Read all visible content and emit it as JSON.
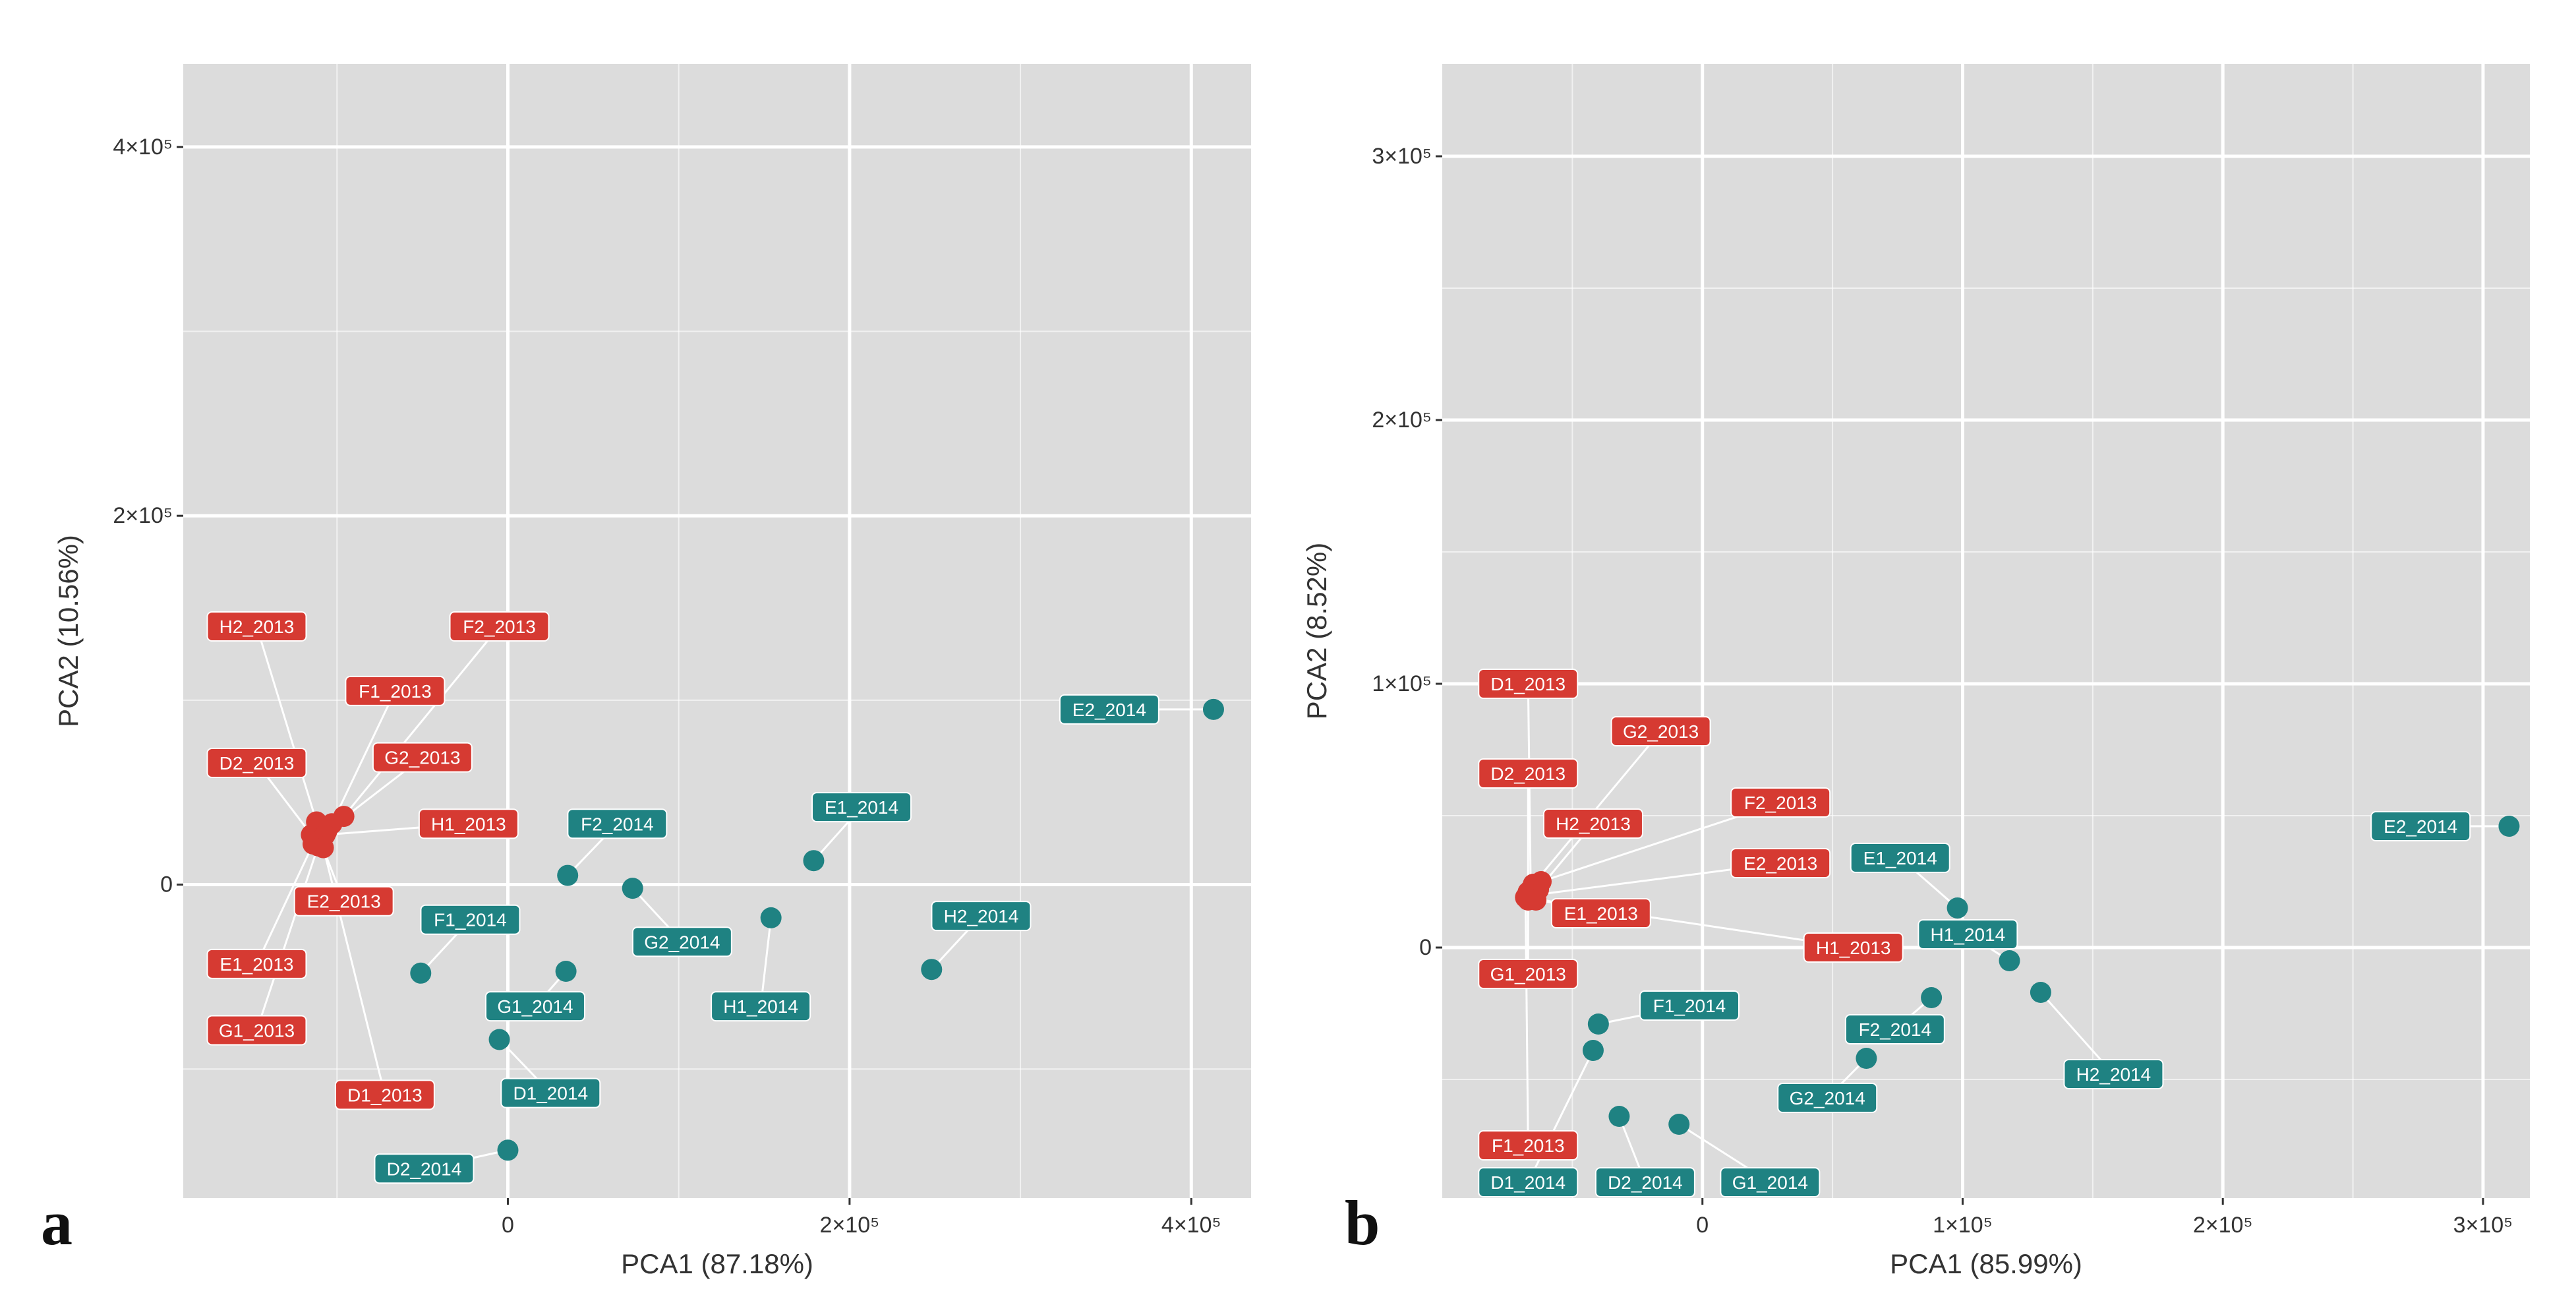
{
  "figure": {
    "panel_a_letter": "a",
    "panel_b_letter": "b"
  },
  "colors": {
    "panel_bg": "#dcdcdc",
    "grid": "#ffffff",
    "red": "#d63a32",
    "teal": "#1f8282",
    "label_text": "#ffffff",
    "axis_text": "#333333"
  },
  "chart_data": [
    {
      "panel": "a",
      "type": "scatter",
      "title": "",
      "xlabel": "PCA1 (87.18%)",
      "ylabel": "PCA2 (10.56%)",
      "xlim": [
        -190000,
        435000
      ],
      "ylim": [
        -170000,
        445000
      ],
      "grid": true,
      "xticks": [
        {
          "value": 0,
          "label": "0"
        },
        {
          "value": 200000,
          "label": "2×10⁵"
        },
        {
          "value": 400000,
          "label": "4×10⁵"
        }
      ],
      "yticks": [
        {
          "value": 0,
          "label": "0"
        },
        {
          "value": 200000,
          "label": "2×10⁵"
        },
        {
          "value": 400000,
          "label": "4×10⁵"
        }
      ],
      "series": [
        {
          "name": "2013",
          "color": "#d63a32",
          "points": [
            {
              "label": "H2_2013",
              "x": -112000,
              "y": 34000,
              "lx": -147000,
              "ly": 140000
            },
            {
              "label": "F2_2013",
              "x": -96000,
              "y": 37000,
              "lx": -5000,
              "ly": 140000
            },
            {
              "label": "F1_2013",
              "x": -103000,
              "y": 33000,
              "lx": -66000,
              "ly": 105000
            },
            {
              "label": "D2_2013",
              "x": -115000,
              "y": 27000,
              "lx": -147000,
              "ly": 66000
            },
            {
              "label": "G2_2013",
              "x": -106000,
              "y": 29000,
              "lx": -50000,
              "ly": 69000
            },
            {
              "label": "H1_2013",
              "x": -107000,
              "y": 27000,
              "lx": -23000,
              "ly": 33000
            },
            {
              "label": "E2_2013",
              "x": -110000,
              "y": 24000,
              "lx": -96000,
              "ly": -9000
            },
            {
              "label": "E1_2013",
              "x": -114000,
              "y": 22000,
              "lx": -147000,
              "ly": -43000
            },
            {
              "label": "G1_2013",
              "x": -111000,
              "y": 21000,
              "lx": -147000,
              "ly": -79000
            },
            {
              "label": "D1_2013",
              "x": -108000,
              "y": 20000,
              "lx": -72000,
              "ly": -114000
            }
          ]
        },
        {
          "name": "2014",
          "color": "#1f8282",
          "points": [
            {
              "label": "E2_2014",
              "x": 413000,
              "y": 95000,
              "lx": 352000,
              "ly": 95000
            },
            {
              "label": "E1_2014",
              "x": 179000,
              "y": 13000,
              "lx": 207000,
              "ly": 42000
            },
            {
              "label": "F2_2014",
              "x": 35000,
              "y": 5000,
              "lx": 64000,
              "ly": 33000
            },
            {
              "label": "H2_2014",
              "x": 248000,
              "y": -46000,
              "lx": 277000,
              "ly": -17000
            },
            {
              "label": "G2_2014",
              "x": 73000,
              "y": -2000,
              "lx": 102000,
              "ly": -31000
            },
            {
              "label": "H1_2014",
              "x": 154000,
              "y": -18000,
              "lx": 148000,
              "ly": -66000
            },
            {
              "label": "F1_2014",
              "x": -51000,
              "y": -48000,
              "lx": -22000,
              "ly": -19000
            },
            {
              "label": "G1_2014",
              "x": 34000,
              "y": -47000,
              "lx": 16000,
              "ly": -66000
            },
            {
              "label": "D1_2014",
              "x": -5000,
              "y": -84000,
              "lx": 25000,
              "ly": -113000
            },
            {
              "label": "D2_2014",
              "x": 0,
              "y": -144000,
              "lx": -49000,
              "ly": -154000
            }
          ]
        }
      ]
    },
    {
      "panel": "b",
      "type": "scatter",
      "title": "",
      "xlabel": "PCA1 (85.99%)",
      "ylabel": "PCA2 (8.52%)",
      "xlim": [
        -100000,
        318000
      ],
      "ylim": [
        -95000,
        335000
      ],
      "grid": true,
      "xticks": [
        {
          "value": 0,
          "label": "0"
        },
        {
          "value": 100000,
          "label": "1×10⁵"
        },
        {
          "value": 200000,
          "label": "2×10⁵"
        },
        {
          "value": 300000,
          "label": "3×10⁵"
        }
      ],
      "yticks": [
        {
          "value": 0,
          "label": "0"
        },
        {
          "value": 100000,
          "label": "1×10⁵"
        },
        {
          "value": 200000,
          "label": "2×10⁵"
        },
        {
          "value": 300000,
          "label": "3×10⁵"
        }
      ],
      "series": [
        {
          "name": "2013",
          "color": "#d63a32",
          "points": [
            {
              "label": "D1_2013",
              "x": -66000,
              "y": 22000,
              "lx": -67000,
              "ly": 100000
            },
            {
              "label": "G2_2013",
              "x": -65000,
              "y": 24000,
              "lx": -16000,
              "ly": 82000
            },
            {
              "label": "D2_2013",
              "x": -67000,
              "y": 21000,
              "lx": -67000,
              "ly": 66000
            },
            {
              "label": "F2_2013",
              "x": -62000,
              "y": 25000,
              "lx": 30000,
              "ly": 55000
            },
            {
              "label": "H2_2013",
              "x": -63000,
              "y": 22000,
              "lx": -42000,
              "ly": 47000
            },
            {
              "label": "E2_2013",
              "x": -64000,
              "y": 20000,
              "lx": 30000,
              "ly": 32000
            },
            {
              "label": "E1_2013",
              "x": -65000,
              "y": 19000,
              "lx": -39000,
              "ly": 13000
            },
            {
              "label": "H1_2013",
              "x": -64000,
              "y": 18000,
              "lx": 58000,
              "ly": 0
            },
            {
              "label": "G1_2013",
              "x": -67000,
              "y": 18000,
              "lx": -67000,
              "ly": -10000
            },
            {
              "label": "F1_2013",
              "x": -68000,
              "y": 19000,
              "lx": -67000,
              "ly": -75000
            }
          ]
        },
        {
          "name": "2014",
          "color": "#1f8282",
          "points": [
            {
              "label": "E2_2014",
              "x": 310000,
              "y": 46000,
              "lx": 276000,
              "ly": 46000
            },
            {
              "label": "E1_2014",
              "x": 98000,
              "y": 15000,
              "lx": 76000,
              "ly": 34000
            },
            {
              "label": "H1_2014",
              "x": 118000,
              "y": -5000,
              "lx": 102000,
              "ly": 5000
            },
            {
              "label": "H2_2014",
              "x": 130000,
              "y": -17000,
              "lx": 158000,
              "ly": -48000
            },
            {
              "label": "F1_2014",
              "x": -40000,
              "y": -29000,
              "lx": -5000,
              "ly": -22000
            },
            {
              "label": "F2_2014",
              "x": 88000,
              "y": -19000,
              "lx": 74000,
              "ly": -31000
            },
            {
              "label": "G2_2014",
              "x": 63000,
              "y": -42000,
              "lx": 48000,
              "ly": -57000
            },
            {
              "label": "D1_2014",
              "x": -42000,
              "y": -39000,
              "lx": -67000,
              "ly": -89000
            },
            {
              "label": "D2_2014",
              "x": -32000,
              "y": -64000,
              "lx": -22000,
              "ly": -89000
            },
            {
              "label": "G1_2014",
              "x": -9000,
              "y": -67000,
              "lx": 26000,
              "ly": -89000
            }
          ]
        }
      ]
    }
  ]
}
